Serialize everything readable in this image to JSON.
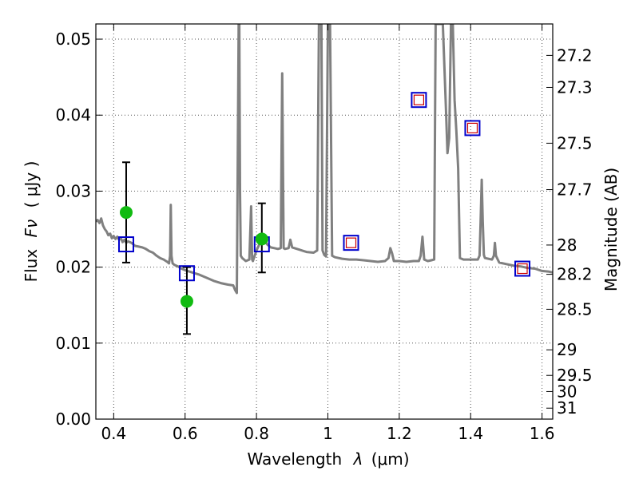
{
  "chart_data": {
    "type": "scatter",
    "title": "",
    "xlabel": "Wavelength",
    "xlabel_symbol": "λ",
    "xlabel_unit": "(μm)",
    "ylabel": "Flux",
    "ylabel_symbol": "Fν",
    "ylabel_unit": "( μJy )",
    "y2label": "Magnitude (AB)",
    "xlim": [
      0.35,
      1.63
    ],
    "ylim": [
      0.0,
      0.052
    ],
    "grid": true,
    "x_ticks": [
      0.4,
      0.6,
      0.8,
      1.0,
      1.2,
      1.4,
      1.6
    ],
    "x_tick_labels": [
      "0.4",
      "0.6",
      "0.8",
      "1",
      "1.2",
      "1.4",
      "1.6"
    ],
    "y_ticks": [
      0.0,
      0.01,
      0.02,
      0.03,
      0.04,
      0.05
    ],
    "y_tick_labels": [
      "0.00",
      "0.01",
      "0.02",
      "0.03",
      "0.04",
      "0.05"
    ],
    "y2_ticks": [
      27.2,
      27.3,
      27.5,
      27.7,
      28,
      28.2,
      28.5,
      29,
      29.5,
      30,
      31
    ],
    "y2_tick_labels": [
      "27.2",
      "27.3",
      "27.5",
      "27.7",
      "28",
      "28.2",
      "28.5",
      "29",
      "29.5",
      "30",
      "31"
    ],
    "colors": {
      "sed": "#808080",
      "model_photometry": "#0000cc",
      "upper_limits": "#cc0000",
      "observed": "#11bb11",
      "errorbar": "#000000",
      "grid": "#555555"
    },
    "series": [
      {
        "name": "SED model",
        "type": "line",
        "points": [
          [
            0.35,
            0.026
          ],
          [
            0.355,
            0.0262
          ],
          [
            0.36,
            0.0258
          ],
          [
            0.365,
            0.0264
          ],
          [
            0.37,
            0.0255
          ],
          [
            0.375,
            0.025
          ],
          [
            0.38,
            0.0247
          ],
          [
            0.385,
            0.0242
          ],
          [
            0.39,
            0.0244
          ],
          [
            0.395,
            0.0238
          ],
          [
            0.4,
            0.0241
          ],
          [
            0.405,
            0.0237
          ],
          [
            0.41,
            0.024
          ],
          [
            0.415,
            0.0236
          ],
          [
            0.42,
            0.0238
          ],
          [
            0.425,
            0.0233
          ],
          [
            0.43,
            0.0236
          ],
          [
            0.435,
            0.0232
          ],
          [
            0.44,
            0.0234
          ],
          [
            0.45,
            0.0232
          ],
          [
            0.46,
            0.0228
          ],
          [
            0.47,
            0.0227
          ],
          [
            0.48,
            0.0226
          ],
          [
            0.49,
            0.0224
          ],
          [
            0.5,
            0.0221
          ],
          [
            0.51,
            0.0219
          ],
          [
            0.52,
            0.0215
          ],
          [
            0.53,
            0.0212
          ],
          [
            0.54,
            0.021
          ],
          [
            0.55,
            0.0207
          ],
          [
            0.555,
            0.0205
          ],
          [
            0.558,
            0.0215
          ],
          [
            0.56,
            0.0282
          ],
          [
            0.562,
            0.0215
          ],
          [
            0.565,
            0.0205
          ],
          [
            0.57,
            0.0203
          ],
          [
            0.58,
            0.0201
          ],
          [
            0.59,
            0.0198
          ],
          [
            0.6,
            0.0196
          ],
          [
            0.62,
            0.0193
          ],
          [
            0.64,
            0.019
          ],
          [
            0.66,
            0.0186
          ],
          [
            0.68,
            0.0182
          ],
          [
            0.7,
            0.0179
          ],
          [
            0.72,
            0.0177
          ],
          [
            0.735,
            0.0176
          ],
          [
            0.74,
            0.017
          ],
          [
            0.745,
            0.0166
          ],
          [
            0.747,
            0.03
          ],
          [
            0.75,
            0.052
          ],
          [
            0.752,
            0.052
          ],
          [
            0.754,
            0.03
          ],
          [
            0.756,
            0.0215
          ],
          [
            0.76,
            0.0212
          ],
          [
            0.77,
            0.0208
          ],
          [
            0.78,
            0.021
          ],
          [
            0.785,
            0.028
          ],
          [
            0.788,
            0.021
          ],
          [
            0.79,
            0.0208
          ],
          [
            0.8,
            0.0222
          ],
          [
            0.81,
            0.0232
          ],
          [
            0.82,
            0.0238
          ],
          [
            0.83,
            0.023
          ],
          [
            0.84,
            0.0226
          ],
          [
            0.85,
            0.0225
          ],
          [
            0.86,
            0.0224
          ],
          [
            0.868,
            0.0225
          ],
          [
            0.872,
            0.0455
          ],
          [
            0.876,
            0.0225
          ],
          [
            0.88,
            0.0224
          ],
          [
            0.89,
            0.0225
          ],
          [
            0.895,
            0.0236
          ],
          [
            0.9,
            0.0226
          ],
          [
            0.92,
            0.0223
          ],
          [
            0.94,
            0.022
          ],
          [
            0.96,
            0.0219
          ],
          [
            0.97,
            0.0222
          ],
          [
            0.975,
            0.052
          ],
          [
            0.982,
            0.052
          ],
          [
            0.985,
            0.0222
          ],
          [
            0.99,
            0.0216
          ],
          [
            0.995,
            0.0214
          ],
          [
            1.0,
            0.052
          ],
          [
            1.006,
            0.052
          ],
          [
            1.012,
            0.0215
          ],
          [
            1.02,
            0.0213
          ],
          [
            1.04,
            0.0211
          ],
          [
            1.06,
            0.021
          ],
          [
            1.08,
            0.021
          ],
          [
            1.1,
            0.0209
          ],
          [
            1.12,
            0.0208
          ],
          [
            1.14,
            0.0207
          ],
          [
            1.16,
            0.0208
          ],
          [
            1.17,
            0.0212
          ],
          [
            1.175,
            0.0225
          ],
          [
            1.18,
            0.0218
          ],
          [
            1.185,
            0.0208
          ],
          [
            1.2,
            0.0208
          ],
          [
            1.22,
            0.0207
          ],
          [
            1.24,
            0.0208
          ],
          [
            1.255,
            0.0208
          ],
          [
            1.26,
            0.0215
          ],
          [
            1.265,
            0.024
          ],
          [
            1.27,
            0.021
          ],
          [
            1.28,
            0.0208
          ],
          [
            1.29,
            0.0209
          ],
          [
            1.298,
            0.021
          ],
          [
            1.302,
            0.052
          ],
          [
            1.308,
            0.052
          ],
          [
            1.315,
            0.052
          ],
          [
            1.322,
            0.052
          ],
          [
            1.33,
            0.042
          ],
          [
            1.335,
            0.035
          ],
          [
            1.34,
            0.037
          ],
          [
            1.345,
            0.052
          ],
          [
            1.35,
            0.052
          ],
          [
            1.355,
            0.042
          ],
          [
            1.36,
            0.038
          ],
          [
            1.365,
            0.033
          ],
          [
            1.37,
            0.0212
          ],
          [
            1.38,
            0.021
          ],
          [
            1.4,
            0.021
          ],
          [
            1.42,
            0.021
          ],
          [
            1.425,
            0.0215
          ],
          [
            1.428,
            0.026
          ],
          [
            1.431,
            0.0315
          ],
          [
            1.434,
            0.026
          ],
          [
            1.437,
            0.0216
          ],
          [
            1.44,
            0.0212
          ],
          [
            1.46,
            0.021
          ],
          [
            1.465,
            0.0215
          ],
          [
            1.468,
            0.0232
          ],
          [
            1.471,
            0.0215
          ],
          [
            1.48,
            0.0206
          ],
          [
            1.5,
            0.0204
          ],
          [
            1.52,
            0.0202
          ],
          [
            1.54,
            0.0201
          ],
          [
            1.56,
            0.0199
          ],
          [
            1.58,
            0.0198
          ],
          [
            1.6,
            0.0195
          ],
          [
            1.62,
            0.0194
          ],
          [
            1.63,
            0.0193
          ]
        ]
      },
      {
        "name": "Model photometry",
        "type": "marker-square-open",
        "points": [
          [
            0.435,
            0.023
          ],
          [
            0.605,
            0.0192
          ],
          [
            0.815,
            0.023
          ],
          [
            1.065,
            0.0232
          ],
          [
            1.255,
            0.042
          ],
          [
            1.405,
            0.0383
          ],
          [
            1.545,
            0.0198
          ]
        ]
      },
      {
        "name": "Upper limits",
        "type": "marker-square-open-small",
        "points": [
          [
            1.065,
            0.0232
          ],
          [
            1.255,
            0.042
          ],
          [
            1.405,
            0.0383
          ],
          [
            1.545,
            0.0198
          ]
        ]
      },
      {
        "name": "Observed",
        "type": "marker-circle-filled",
        "points": [
          [
            0.435,
            0.0272
          ],
          [
            0.605,
            0.0155
          ],
          [
            0.815,
            0.0237
          ]
        ],
        "errors": [
          [
            0.0206,
            0.0338
          ],
          [
            0.0112,
            0.02
          ],
          [
            0.0193,
            0.0284
          ]
        ]
      }
    ]
  }
}
